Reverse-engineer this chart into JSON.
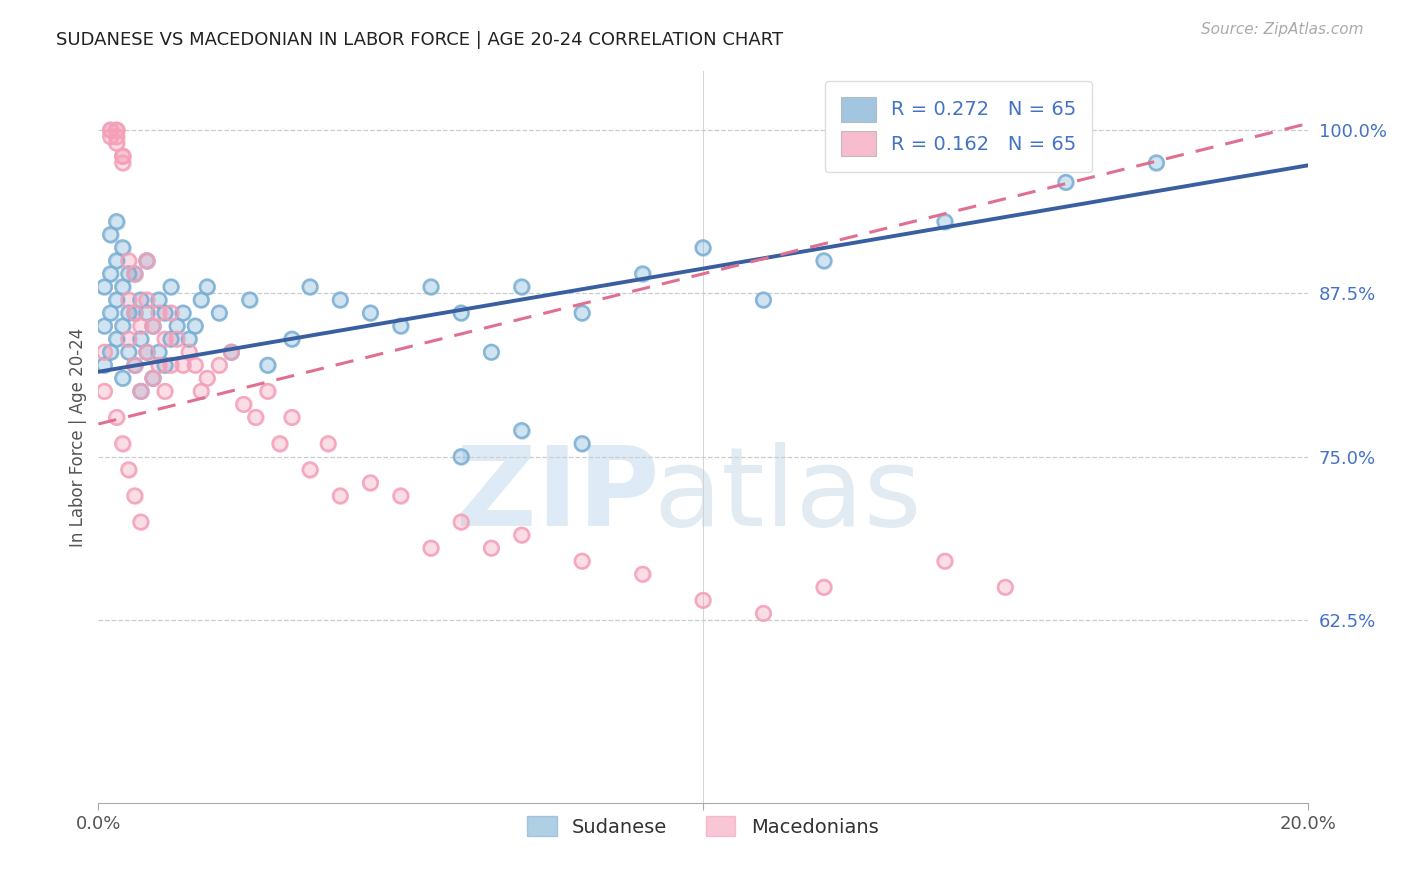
{
  "title": "SUDANESE VS MACEDONIAN IN LABOR FORCE | AGE 20-24 CORRELATION CHART",
  "source": "Source: ZipAtlas.com",
  "ylabel": "In Labor Force | Age 20-24",
  "ytick_values": [
    0.625,
    0.75,
    0.875,
    1.0
  ],
  "ytick_labels": [
    "62.5%",
    "75.0%",
    "87.5%",
    "100.0%"
  ],
  "watermark_zip": "ZIP",
  "watermark_atlas": "atlas",
  "sudanese_color": "#7bafd4",
  "macedonian_color": "#f4a0b8",
  "trendline_sudanese_color": "#3a5fa0",
  "trendline_macedonian_color": "#e07090",
  "sud_trend_x0": 0.0,
  "sud_trend_y0": 0.815,
  "sud_trend_x1": 0.2,
  "sud_trend_y1": 0.973,
  "mac_trend_x0": 0.0,
  "mac_trend_y0": 0.775,
  "mac_trend_x1": 0.2,
  "mac_trend_y1": 1.005,
  "xmin": 0.0,
  "xmax": 0.2,
  "ymin": 0.485,
  "ymax": 1.045,
  "sudanese_x": [
    0.001,
    0.001,
    0.001,
    0.002,
    0.002,
    0.002,
    0.002,
    0.003,
    0.003,
    0.003,
    0.003,
    0.004,
    0.004,
    0.004,
    0.004,
    0.005,
    0.005,
    0.005,
    0.006,
    0.006,
    0.006,
    0.007,
    0.007,
    0.007,
    0.008,
    0.008,
    0.008,
    0.009,
    0.009,
    0.01,
    0.01,
    0.011,
    0.011,
    0.012,
    0.012,
    0.013,
    0.014,
    0.015,
    0.016,
    0.017,
    0.018,
    0.02,
    0.022,
    0.025,
    0.028,
    0.032,
    0.035,
    0.04,
    0.045,
    0.05,
    0.055,
    0.06,
    0.065,
    0.07,
    0.08,
    0.09,
    0.1,
    0.11,
    0.12,
    0.14,
    0.06,
    0.07,
    0.08,
    0.16,
    0.175
  ],
  "sudanese_y": [
    0.82,
    0.85,
    0.88,
    0.83,
    0.86,
    0.89,
    0.92,
    0.84,
    0.87,
    0.9,
    0.93,
    0.81,
    0.85,
    0.88,
    0.91,
    0.83,
    0.86,
    0.89,
    0.82,
    0.86,
    0.89,
    0.8,
    0.84,
    0.87,
    0.83,
    0.86,
    0.9,
    0.81,
    0.85,
    0.83,
    0.87,
    0.82,
    0.86,
    0.84,
    0.88,
    0.85,
    0.86,
    0.84,
    0.85,
    0.87,
    0.88,
    0.86,
    0.83,
    0.87,
    0.82,
    0.84,
    0.88,
    0.87,
    0.86,
    0.85,
    0.88,
    0.86,
    0.83,
    0.88,
    0.86,
    0.89,
    0.91,
    0.87,
    0.9,
    0.93,
    0.75,
    0.77,
    0.76,
    0.96,
    0.975
  ],
  "macedonian_x": [
    0.001,
    0.001,
    0.002,
    0.002,
    0.002,
    0.003,
    0.003,
    0.003,
    0.003,
    0.004,
    0.004,
    0.004,
    0.005,
    0.005,
    0.005,
    0.006,
    0.006,
    0.006,
    0.007,
    0.007,
    0.008,
    0.008,
    0.008,
    0.009,
    0.009,
    0.01,
    0.01,
    0.011,
    0.011,
    0.012,
    0.012,
    0.013,
    0.014,
    0.015,
    0.016,
    0.017,
    0.018,
    0.02,
    0.022,
    0.024,
    0.026,
    0.028,
    0.03,
    0.032,
    0.035,
    0.038,
    0.04,
    0.045,
    0.05,
    0.055,
    0.06,
    0.065,
    0.07,
    0.08,
    0.09,
    0.1,
    0.11,
    0.12,
    0.14,
    0.15,
    0.003,
    0.004,
    0.005,
    0.006,
    0.007
  ],
  "macedonian_y": [
    0.8,
    0.83,
    1.0,
    1.0,
    0.995,
    1.0,
    1.0,
    0.995,
    0.99,
    0.98,
    0.98,
    0.975,
    0.84,
    0.87,
    0.9,
    0.82,
    0.86,
    0.89,
    0.8,
    0.85,
    0.83,
    0.87,
    0.9,
    0.81,
    0.85,
    0.82,
    0.86,
    0.8,
    0.84,
    0.82,
    0.86,
    0.84,
    0.82,
    0.83,
    0.82,
    0.8,
    0.81,
    0.82,
    0.83,
    0.79,
    0.78,
    0.8,
    0.76,
    0.78,
    0.74,
    0.76,
    0.72,
    0.73,
    0.72,
    0.68,
    0.7,
    0.68,
    0.69,
    0.67,
    0.66,
    0.64,
    0.63,
    0.65,
    0.67,
    0.65,
    0.78,
    0.76,
    0.74,
    0.72,
    0.7
  ]
}
